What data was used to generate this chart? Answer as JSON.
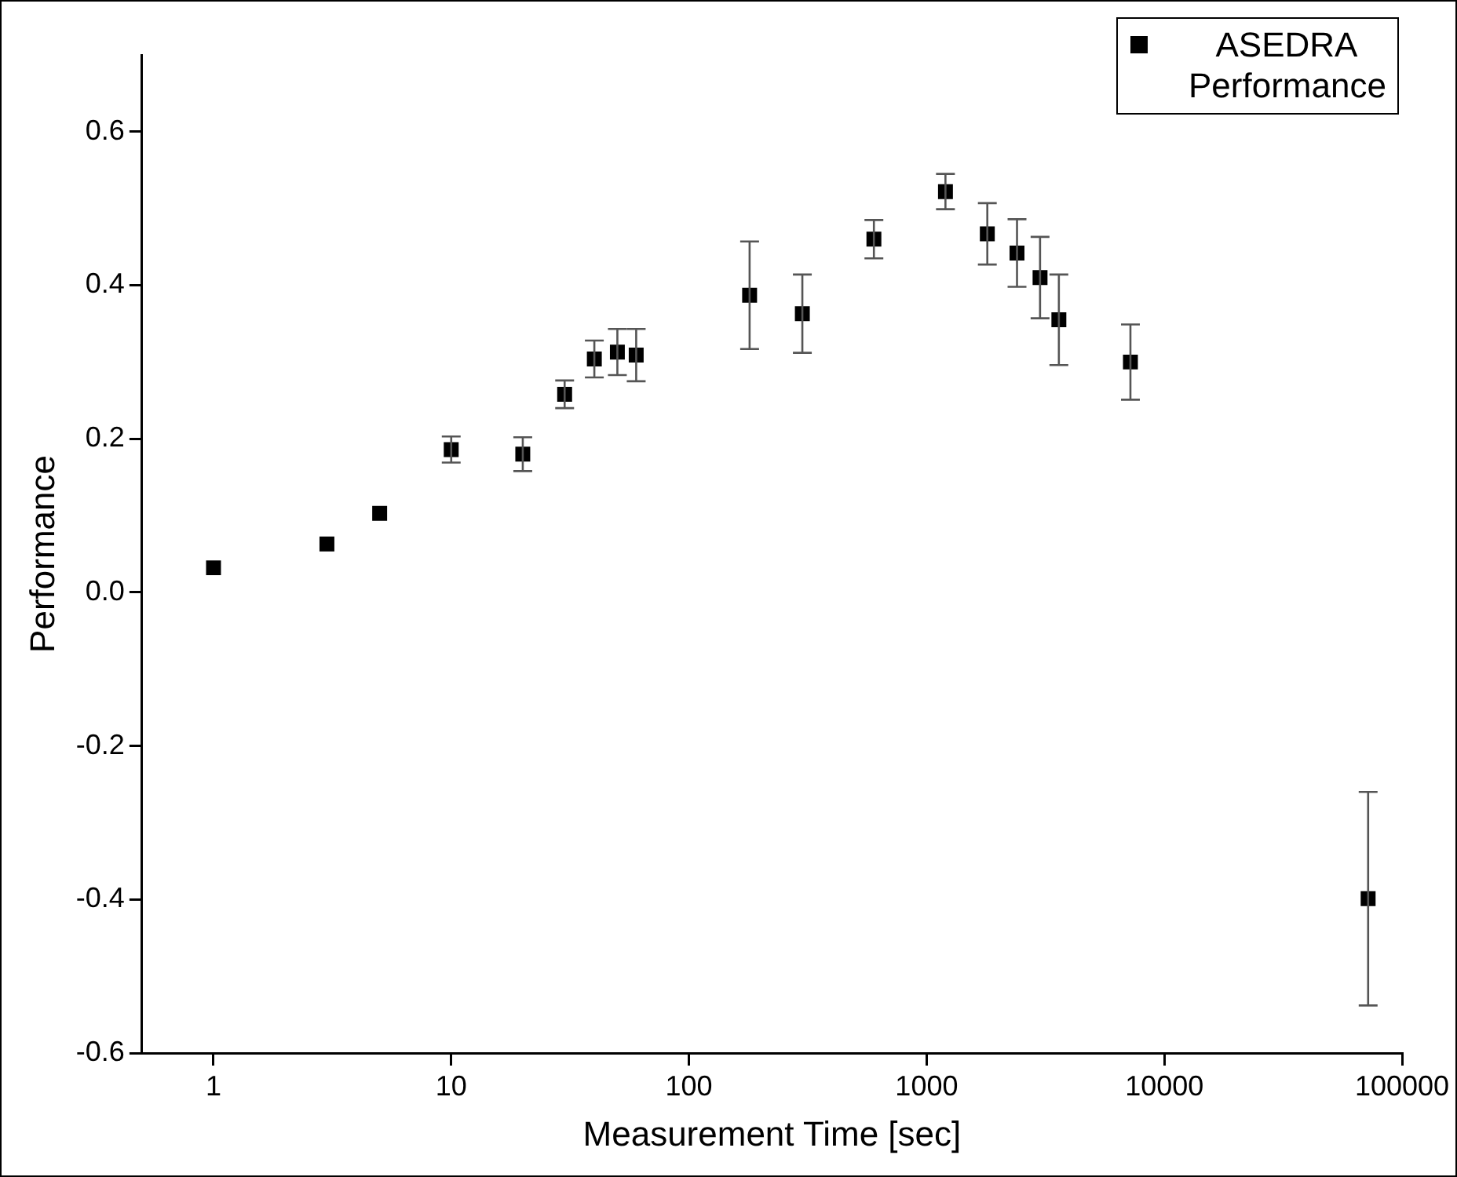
{
  "chart_data": {
    "type": "scatter",
    "xlabel": "Measurement Time [sec]",
    "ylabel": "Performance",
    "log": "x",
    "marker": "square",
    "legend": "top right",
    "grid": false,
    "x": [
      1,
      3,
      5,
      10,
      20,
      30,
      40,
      50,
      60,
      180,
      300,
      600,
      1200,
      1800,
      2400,
      3000,
      3600,
      7200,
      72000
    ],
    "xlim": [
      0.5,
      100000
    ],
    "xticks": [
      1,
      10,
      100,
      1000,
      10000,
      100000
    ],
    "ylim": [
      -0.6,
      0.7
    ],
    "yticks": [
      -0.6,
      -0.4,
      -0.2,
      {
        "value": 0,
        "label": "0.0"
      },
      0.2,
      0.4,
      0.6
    ],
    "series": [
      {
        "name": "ASEDRA Performance",
        "color": "#000000",
        "values": [
          0.032,
          0.063,
          0.103,
          0.186,
          0.18,
          0.258,
          0.304,
          0.313,
          0.309,
          0.387,
          0.363,
          0.46,
          0.522,
          0.467,
          0.442,
          0.41,
          0.355,
          0.3,
          -0.399
        ],
        "errors": [
          null,
          null,
          null,
          0.017,
          0.022,
          0.018,
          0.024,
          0.03,
          0.034,
          0.07,
          0.051,
          0.025,
          0.023,
          0.04,
          0.044,
          0.053,
          0.059,
          0.049,
          0.139
        ]
      }
    ]
  }
}
